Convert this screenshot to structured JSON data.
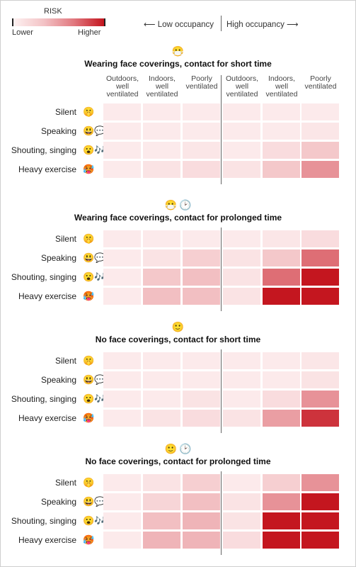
{
  "legend": {
    "title": "RISK",
    "low_label": "Lower",
    "high_label": "Higher",
    "colors": [
      "#fdf1f1",
      "#f3c3c6",
      "#e1787f",
      "#c4161f"
    ]
  },
  "occupancy": {
    "low": "⟵ Low occupancy",
    "high": "High occupancy ⟶"
  },
  "columns": [
    "Outdoors, well ventilated",
    "Indoors, well ventilated",
    "Poorly ventilated",
    "Outdoors, well ventilated",
    "Indoors, well ventilated",
    "Poorly ventilated"
  ],
  "rows": [
    "Silent",
    "Speaking",
    "Shouting, singing",
    "Heavy exercise"
  ],
  "row_icons": [
    "shushing-face-icon",
    "talking-face-icon",
    "singing-face-icon",
    "exercising-face-icon"
  ],
  "panels": [
    {
      "title": "Wearing face coverings, contact for short time",
      "icons": [
        "face-mask-icon"
      ]
    },
    {
      "title": "Wearing face coverings, contact for prolonged time",
      "icons": [
        "face-mask-icon",
        "clock-icon"
      ]
    },
    {
      "title": "No face coverings, contact for short time",
      "icons": [
        "smiley-face-icon"
      ]
    },
    {
      "title": "No face coverings, contact for prolonged time",
      "icons": [
        "smiley-face-icon",
        "clock-icon"
      ]
    }
  ],
  "chart_data": {
    "type": "heatmap",
    "scale": "0 = lower risk, 1 = higher risk",
    "x": [
      "Outdoors, well ventilated",
      "Indoors, well ventilated",
      "Poorly ventilated",
      "Outdoors, well ventilated",
      "Indoors, well ventilated",
      "Poorly ventilated"
    ],
    "x_groups": [
      "Low occupancy",
      "Low occupancy",
      "Low occupancy",
      "High occupancy",
      "High occupancy",
      "High occupancy"
    ],
    "y": [
      "Silent",
      "Speaking",
      "Shouting, singing",
      "Heavy exercise"
    ],
    "panels": [
      {
        "title": "Wearing face coverings, contact for short time",
        "values": [
          [
            0.05,
            0.05,
            0.05,
            0.05,
            0.05,
            0.05
          ],
          [
            0.05,
            0.05,
            0.05,
            0.05,
            0.05,
            0.08
          ],
          [
            0.05,
            0.05,
            0.08,
            0.05,
            0.15,
            0.3
          ],
          [
            0.05,
            0.1,
            0.15,
            0.1,
            0.3,
            0.55
          ]
        ]
      },
      {
        "title": "Wearing face coverings, contact for prolonged time",
        "values": [
          [
            0.05,
            0.05,
            0.05,
            0.05,
            0.08,
            0.15
          ],
          [
            0.05,
            0.1,
            0.25,
            0.1,
            0.3,
            0.7
          ],
          [
            0.05,
            0.3,
            0.35,
            0.1,
            0.7,
            1.0
          ],
          [
            0.05,
            0.35,
            0.35,
            0.1,
            1.0,
            1.0
          ]
        ]
      },
      {
        "title": "No face coverings, contact for short time",
        "values": [
          [
            0.05,
            0.05,
            0.05,
            0.05,
            0.05,
            0.08
          ],
          [
            0.05,
            0.05,
            0.05,
            0.05,
            0.05,
            0.1
          ],
          [
            0.05,
            0.05,
            0.1,
            0.05,
            0.15,
            0.55
          ],
          [
            0.05,
            0.1,
            0.15,
            0.1,
            0.5,
            0.9
          ]
        ]
      },
      {
        "title": "No face coverings, contact for prolonged time",
        "values": [
          [
            0.05,
            0.1,
            0.25,
            0.05,
            0.25,
            0.55
          ],
          [
            0.05,
            0.2,
            0.35,
            0.1,
            0.55,
            1.0
          ],
          [
            0.05,
            0.35,
            0.4,
            0.1,
            1.0,
            1.0
          ],
          [
            0.05,
            0.4,
            0.4,
            0.15,
            1.0,
            1.0
          ]
        ]
      }
    ]
  }
}
